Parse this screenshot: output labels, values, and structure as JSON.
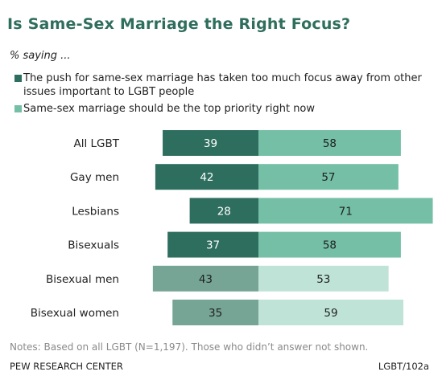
{
  "header": {
    "title": "Is Same-Sex Marriage the Right Focus?",
    "subtitle": "% saying ..."
  },
  "legend": {
    "items": [
      {
        "label": "The push for same-sex marriage has taken too much focus away from other issues important to LGBT people",
        "color": "#2e6e5e"
      },
      {
        "label": "Same-sex marriage should be the top priority right now",
        "color": "#74bfa6"
      }
    ]
  },
  "colors": {
    "left_dark": "#2e6e5e",
    "right_dark": "#74bfa6",
    "left_light": "#76a595",
    "right_light": "#bfe3d6",
    "title": "#2f6e5d"
  },
  "chart_data": {
    "type": "bar",
    "orientation": "diverging-horizontal",
    "categories": [
      "All LGBT",
      "Gay men",
      "Lesbians",
      "Bisexuals",
      "Bisexual men",
      "Bisexual women"
    ],
    "series": [
      {
        "name": "The push for same-sex marriage has taken too much focus away from other issues important to LGBT people",
        "values": [
          39,
          42,
          28,
          37,
          43,
          35
        ]
      },
      {
        "name": "Same-sex marriage should be the top priority right now",
        "values": [
          58,
          57,
          71,
          58,
          53,
          59
        ]
      }
    ],
    "light_shade_categories": [
      "Bisexual men",
      "Bisexual women"
    ]
  },
  "footer": {
    "notes": "Notes: Based on all LGBT (N=1,197). Those who didn’t answer not shown.",
    "source": "PEW RESEARCH CENTER",
    "code": "LGBT/102a"
  }
}
